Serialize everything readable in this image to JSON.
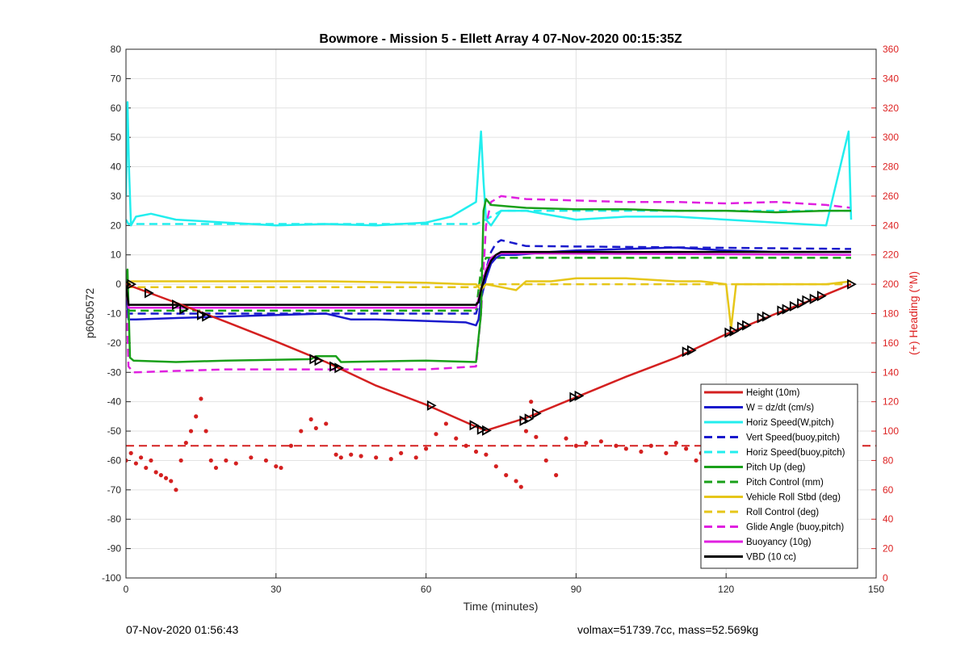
{
  "chart_data": {
    "type": "line",
    "title": "Bowmore - Mission 5 - Ellett Array 4 07-Nov-2020 00:15:35Z",
    "xlabel": "Time (minutes)",
    "ylabel": "p6050572",
    "y2label": "(+) Heading (°M)",
    "xlim": [
      0,
      150
    ],
    "ylim": [
      -100,
      80
    ],
    "y2lim": [
      0,
      360
    ],
    "xticks": [
      0,
      30,
      60,
      90,
      120,
      150
    ],
    "yticks": [
      -100,
      -90,
      -80,
      -70,
      -60,
      -50,
      -40,
      -30,
      -20,
      -10,
      0,
      10,
      20,
      30,
      40,
      50,
      60,
      70,
      80
    ],
    "y2ticks": [
      0,
      20,
      40,
      60,
      80,
      100,
      120,
      140,
      160,
      180,
      200,
      220,
      240,
      260,
      280,
      300,
      320,
      340,
      360
    ],
    "grid": true,
    "legend_position": "bottom-right",
    "colors": {
      "red": "#d42020",
      "blue": "#1a1acc",
      "cyan": "#22eeee",
      "green": "#1aa01a",
      "yellow": "#e6c619",
      "magenta": "#e020e0",
      "black": "#000000",
      "right_axis": "#dd2222"
    },
    "series": [
      {
        "name": "Height (10m)",
        "color": "red",
        "style": "solid",
        "x": [
          0,
          10,
          20,
          30,
          40,
          50,
          60,
          70,
          72,
          80,
          90,
          100,
          110,
          120,
          130,
          140,
          145
        ],
        "y": [
          0,
          -6.3,
          -12.8,
          -19.5,
          -26.5,
          -34.5,
          -41,
          -48.5,
          -49.8,
          -45.5,
          -38.5,
          -31.5,
          -25,
          -17,
          -10,
          -3.5,
          0
        ]
      },
      {
        "name": "W = dz/dt (cm/s)",
        "color": "blue",
        "style": "solid",
        "x": [
          0,
          0.5,
          2,
          10,
          20,
          30,
          40,
          45,
          50,
          60,
          68,
          70,
          70.5,
          71,
          72,
          73,
          74,
          75,
          78,
          85,
          90,
          100,
          110,
          120,
          130,
          140,
          145
        ],
        "y": [
          0,
          -12,
          -12,
          -11.5,
          -11,
          -10.5,
          -10,
          -12,
          -12,
          -12.5,
          -13,
          -14,
          -12,
          -5,
          2,
          7,
          9,
          10,
          10,
          11,
          11.5,
          12,
          12.5,
          11.5,
          11,
          11,
          11
        ]
      },
      {
        "name": "Horiz Speed(W,pitch)",
        "color": "cyan",
        "style": "solid",
        "x": [
          0,
          0.3,
          0.6,
          1,
          2,
          5,
          10,
          20,
          30,
          40,
          50,
          60,
          65,
          68,
          70,
          70.5,
          71,
          71.5,
          72,
          73,
          75,
          80,
          90,
          100,
          110,
          120,
          130,
          140,
          144.5,
          145
        ],
        "y": [
          30,
          62,
          40,
          20,
          23,
          24,
          22,
          21,
          20,
          20.5,
          20,
          21,
          23,
          26,
          28,
          40,
          52,
          35,
          22,
          20,
          25,
          25,
          22,
          23,
          23,
          22,
          21,
          20,
          52,
          22
        ]
      },
      {
        "name": "Vert Speed(buoy,pitch)",
        "color": "blue",
        "style": "dashed",
        "x": [
          0,
          0.5,
          10,
          70,
          71,
          72,
          73,
          74,
          75,
          80,
          145
        ],
        "y": [
          0,
          -10,
          -10,
          -10,
          -4,
          5,
          11,
          14,
          15,
          13,
          12
        ]
      },
      {
        "name": "Horiz Speed(buoy,pitch)",
        "color": "cyan",
        "style": "dashed",
        "x": [
          0,
          0.5,
          70,
          72,
          75,
          145
        ],
        "y": [
          22,
          20.5,
          20.5,
          22,
          25,
          25
        ]
      },
      {
        "name": "Pitch Up (deg)",
        "color": "green",
        "style": "solid",
        "x": [
          0,
          0.3,
          0.8,
          1.5,
          10,
          20,
          37,
          38,
          42,
          43,
          60,
          70,
          71,
          71.5,
          72,
          73,
          80,
          90,
          100,
          110,
          120,
          130,
          140,
          145
        ],
        "y": [
          0,
          5,
          -25,
          -26,
          -26.5,
          -26,
          -25.5,
          -24.5,
          -24.5,
          -26.5,
          -26,
          -26.5,
          -10,
          25,
          29,
          27,
          26,
          25.5,
          25.5,
          25,
          25,
          24.5,
          25,
          25
        ]
      },
      {
        "name": "Pitch Control (mm)",
        "color": "green",
        "style": "dashed",
        "x": [
          0,
          0.5,
          70,
          71,
          72,
          75,
          145
        ],
        "y": [
          0,
          -9,
          -9,
          5,
          9,
          9,
          9
        ]
      },
      {
        "name": "Vehicle Roll Stbd (deg)",
        "color": "yellow",
        "style": "solid",
        "x": [
          0,
          1,
          10,
          14,
          15,
          20,
          40,
          60,
          68,
          70,
          71,
          72,
          75,
          78,
          80,
          85,
          90,
          100,
          110,
          115,
          120,
          121,
          122,
          130,
          140,
          145
        ],
        "y": [
          0,
          1,
          1,
          1,
          1,
          1,
          1,
          0.5,
          0,
          0,
          -2,
          0,
          -1,
          -2,
          1,
          1,
          2,
          2,
          1,
          1,
          0,
          -15,
          0,
          0,
          0,
          1
        ]
      },
      {
        "name": "Roll Control (deg)",
        "color": "yellow",
        "style": "dashed",
        "x": [
          0,
          0.5,
          10,
          20,
          40,
          60,
          70,
          71,
          72,
          75,
          80,
          90,
          110,
          130,
          145
        ],
        "y": [
          0,
          -1,
          -1,
          -1,
          -1,
          -1,
          -1,
          0,
          0,
          0,
          0,
          0,
          0,
          0,
          0
        ]
      },
      {
        "name": "Glide Angle (buoy,pitch)",
        "color": "magenta",
        "style": "dashed",
        "x": [
          0,
          0.5,
          1.5,
          10,
          20,
          40,
          60,
          70,
          71,
          72,
          73,
          75,
          80,
          90,
          100,
          110,
          120,
          130,
          140,
          145
        ],
        "y": [
          0,
          -28,
          -30,
          -29.5,
          -29,
          -29,
          -29,
          -28,
          -10,
          20,
          28,
          30,
          29,
          28.5,
          28,
          28,
          27.5,
          28,
          27,
          26
        ]
      },
      {
        "name": "Buoyancy (10g)",
        "color": "magenta",
        "style": "solid",
        "x": [
          0,
          0.5,
          70,
          71,
          72,
          73,
          74,
          75,
          80,
          145
        ],
        "y": [
          0,
          -8,
          -8,
          -2,
          5,
          9,
          10,
          10.5,
          10.5,
          10
        ]
      },
      {
        "name": "VBD (10 cc)",
        "color": "black",
        "style": "solid",
        "x": [
          0,
          0.5,
          70,
          70.5,
          71,
          72,
          73,
          74,
          75,
          80,
          145
        ],
        "y": [
          0,
          -7,
          -7,
          -6,
          -2,
          4,
          8,
          10,
          11,
          11,
          11
        ]
      }
    ],
    "heading": {
      "axis": "right",
      "color": "red",
      "mean_heading_line": 90,
      "x": [
        0,
        1,
        2,
        3,
        4,
        5,
        6,
        7,
        8,
        9,
        10,
        11,
        12,
        13,
        14,
        15,
        16,
        17,
        18,
        20,
        22,
        25,
        28,
        30,
        31,
        33,
        35,
        37,
        38,
        40,
        42,
        43,
        45,
        47,
        50,
        53,
        55,
        58,
        60,
        62,
        64,
        66,
        68,
        70,
        72,
        74,
        76,
        78,
        79,
        80,
        81,
        82,
        84,
        86,
        88,
        90,
        92,
        95,
        98,
        100,
        103,
        105,
        108,
        110,
        112,
        114,
        115,
        116,
        118,
        120,
        122,
        124,
        126,
        128,
        130,
        132,
        134,
        136,
        138,
        140,
        141,
        142,
        143,
        144,
        145
      ],
      "y": [
        80,
        85,
        78,
        82,
        75,
        80,
        72,
        70,
        68,
        66,
        60,
        80,
        92,
        100,
        110,
        122,
        100,
        80,
        75,
        80,
        78,
        82,
        80,
        76,
        75,
        90,
        100,
        108,
        102,
        105,
        84,
        82,
        84,
        83,
        82,
        81,
        85,
        82,
        88,
        98,
        105,
        95,
        90,
        86,
        84,
        76,
        70,
        66,
        62,
        100,
        120,
        96,
        80,
        70,
        95,
        90,
        92,
        93,
        90,
        88,
        86,
        90,
        85,
        92,
        88,
        80,
        85,
        65,
        88,
        95,
        88,
        85,
        82,
        78,
        84,
        80,
        85,
        78,
        76,
        80,
        70,
        85,
        72,
        75,
        50
      ]
    },
    "markers": {
      "x": [
        0,
        1,
        4.5,
        10,
        11.5,
        15,
        16,
        37.5,
        38.5,
        41.5,
        42.5,
        61,
        69.5,
        71,
        72,
        79.5,
        80.5,
        82,
        89.5,
        90.5,
        112,
        113,
        120.5,
        121.5,
        123,
        124,
        127,
        128,
        131,
        132,
        133.5,
        135,
        136,
        137.5,
        139,
        145
      ],
      "y": [
        0,
        0,
        -3,
        -7,
        -8.5,
        -10.5,
        -11,
        -25.5,
        -26,
        -28,
        -28.5,
        -41.3,
        -48,
        -49.5,
        -49.8,
        -46.5,
        -45.8,
        -44,
        -38.5,
        -38,
        -23,
        -22.5,
        -16.5,
        -16,
        -14.5,
        -14,
        -11.5,
        -11,
        -9,
        -8.5,
        -7.5,
        -6.5,
        -5.5,
        -5,
        -4,
        0
      ]
    }
  },
  "footer": {
    "left": "07-Nov-2020 01:56:43",
    "right": "volmax=51739.7cc, mass=52.569kg"
  }
}
